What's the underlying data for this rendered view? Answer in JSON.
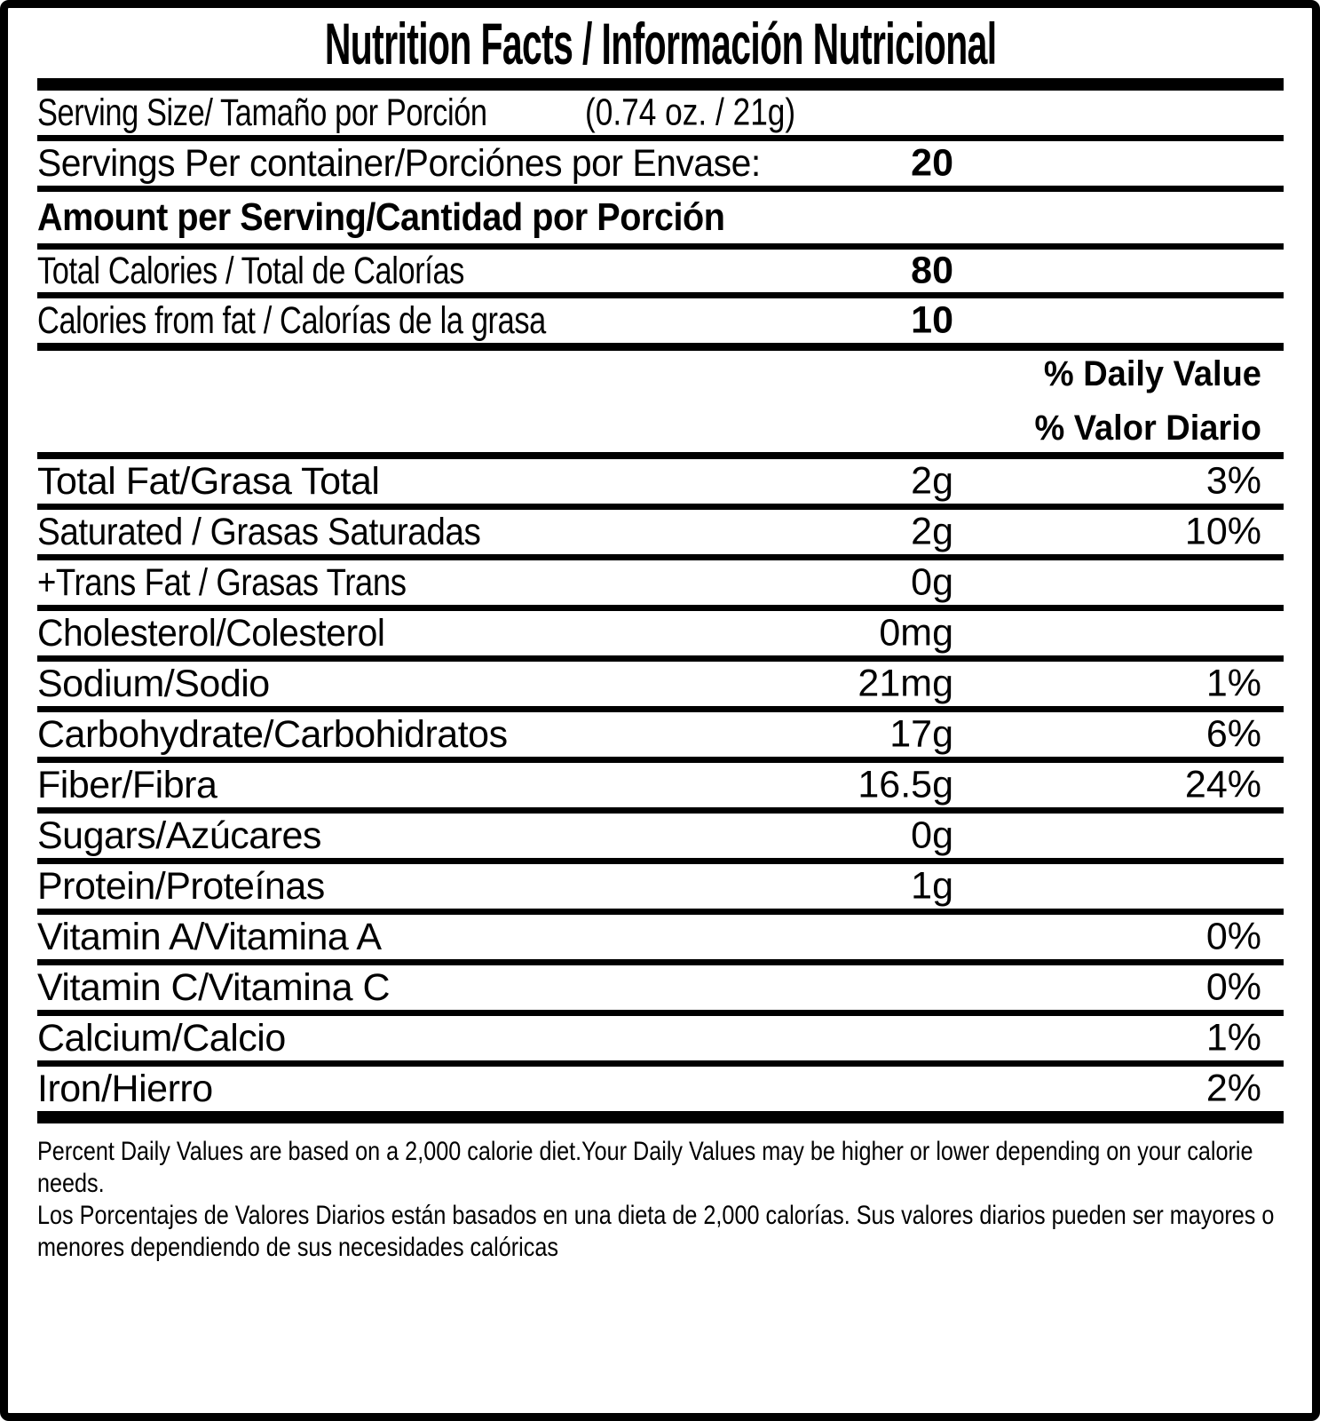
{
  "title": "Nutrition Facts / Información Nutricional",
  "serving_size": {
    "label": "Serving Size/ Tamaño por Porción",
    "value": "(0.74 oz. / 21g)"
  },
  "servings_per_container": {
    "label": "Servings Per container/Porciónes por Envase:",
    "value": "20"
  },
  "amount_per_serving_heading": "Amount per Serving/Cantidad por Porción",
  "calorie_rows": [
    {
      "label": "Total Calories / Total de Calorías",
      "value": "80"
    },
    {
      "label": "Calories from fat / Calorías de la grasa",
      "value": "10"
    }
  ],
  "daily_value_header": {
    "line1": "% Daily Value",
    "line2": "% Valor Diario"
  },
  "nutrients": [
    {
      "label": "Total Fat/Grasa Total",
      "amount": "2g",
      "dv": "3%"
    },
    {
      "label": "Saturated / Grasas Saturadas",
      "amount": "2g",
      "dv": "10%"
    },
    {
      "label": "+Trans Fat / Grasas Trans",
      "amount": "0g",
      "dv": ""
    },
    {
      "label": "Cholesterol/Colesterol",
      "amount": "0mg",
      "dv": ""
    },
    {
      "label": "Sodium/Sodio",
      "amount": "21mg",
      "dv": "1%"
    },
    {
      "label": "Carbohydrate/Carbohidratos",
      "amount": "17g",
      "dv": "6%"
    },
    {
      "label": "Fiber/Fibra",
      "amount": "16.5g",
      "dv": "24%"
    },
    {
      "label": "Sugars/Azúcares",
      "amount": "0g",
      "dv": ""
    },
    {
      "label": "Protein/Proteínas",
      "amount": "1g",
      "dv": ""
    },
    {
      "label": "Vitamin A/Vitamina A",
      "amount": "",
      "dv": "0%"
    },
    {
      "label": "Vitamin C/Vitamina C",
      "amount": "",
      "dv": "0%"
    },
    {
      "label": "Calcium/Calcio",
      "amount": "",
      "dv": "1%"
    },
    {
      "label": "Iron/Hierro",
      "amount": "",
      "dv": "2%"
    }
  ],
  "footnote": {
    "english": "Percent Daily Values are based on a 2,000 calorie diet.Your Daily Values may be higher or lower depending on your calorie needs.",
    "spanish": "Los Porcentajes de Valores Diarios están basados en una dieta de 2,000 calorías. Sus valores diarios pueden ser mayores o menores dependiendo de sus necesidades calóricas"
  },
  "colors": {
    "ink": "#000000",
    "paper": "#ffffff"
  }
}
